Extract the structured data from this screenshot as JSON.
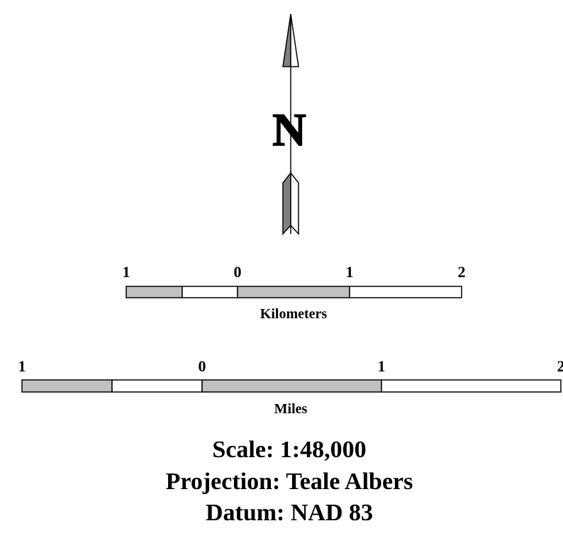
{
  "north_arrow": {
    "label": "N"
  },
  "kilometers": {
    "ticks": [
      "1",
      "0",
      "1",
      "2"
    ],
    "unit": "Kilometers"
  },
  "miles": {
    "ticks": [
      "1",
      "0",
      "1",
      "2"
    ],
    "unit": "Miles"
  },
  "info": [
    "Scale: 1:48,000",
    "Projection: Teale Albers",
    "Datum: NAD 83"
  ]
}
